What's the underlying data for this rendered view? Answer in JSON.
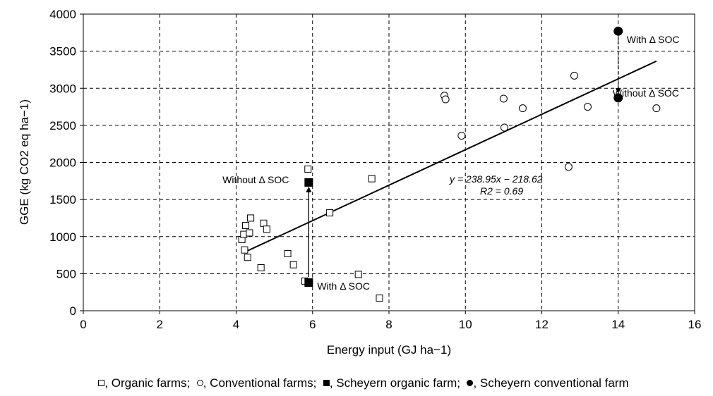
{
  "chart_data": {
    "type": "scatter",
    "xlabel": "Energy input (GJ ha−1)",
    "ylabel": "GGE (kg CO2 eq ha−1)",
    "xlim": [
      0,
      16
    ],
    "ylim": [
      0,
      4000
    ],
    "xticks": [
      0,
      2,
      4,
      6,
      8,
      10,
      12,
      14,
      16
    ],
    "yticks": [
      0,
      500,
      1000,
      1500,
      2000,
      2500,
      3000,
      3500,
      4000
    ],
    "grid": true,
    "series": [
      {
        "name": "Organic farms",
        "marker": "open-square",
        "x": [
          4.15,
          4.2,
          4.25,
          4.22,
          4.3,
          4.35,
          4.38,
          4.65,
          4.72,
          4.8,
          5.35,
          5.5,
          5.8,
          5.88,
          6.45,
          7.2,
          7.55,
          7.75
        ],
        "y": [
          960,
          1030,
          1150,
          820,
          720,
          1050,
          1250,
          580,
          1180,
          1100,
          770,
          620,
          400,
          1910,
          1320,
          490,
          1780,
          170
        ]
      },
      {
        "name": "Conventional farms",
        "marker": "open-circle",
        "x": [
          9.45,
          9.48,
          9.9,
          11.0,
          11.02,
          11.5,
          12.7,
          12.85,
          13.2,
          15.0
        ],
        "y": [
          2900,
          2850,
          2360,
          2860,
          2470,
          2730,
          1940,
          3170,
          2750,
          2730
        ]
      },
      {
        "name": "Scheyern organic farm",
        "marker": "filled-square",
        "x": [
          5.9,
          5.9
        ],
        "y": [
          1730,
          380
        ]
      },
      {
        "name": "Scheyern conventional farm",
        "marker": "filled-circle",
        "x": [
          14.0,
          14.0
        ],
        "y": [
          3770,
          2870
        ]
      }
    ],
    "regression": {
      "x_range": [
        4.2,
        15.0
      ],
      "slope": 238.95,
      "intercept": -218.62,
      "equation": "y = 238.95x − 218.62",
      "r2": "R2 = 0.69"
    },
    "annotations": {
      "organic_without": "Without Δ SOC",
      "organic_with": "With Δ SOC",
      "conventional_with": "With Δ SOC",
      "conventional_without": "Without Δ SOC"
    },
    "legend": {
      "placement": "bottom",
      "entries": [
        "Organic farms;",
        "Conventional farms;",
        "Scheyern organic farm;",
        "Scheyern conventional farm"
      ]
    }
  }
}
